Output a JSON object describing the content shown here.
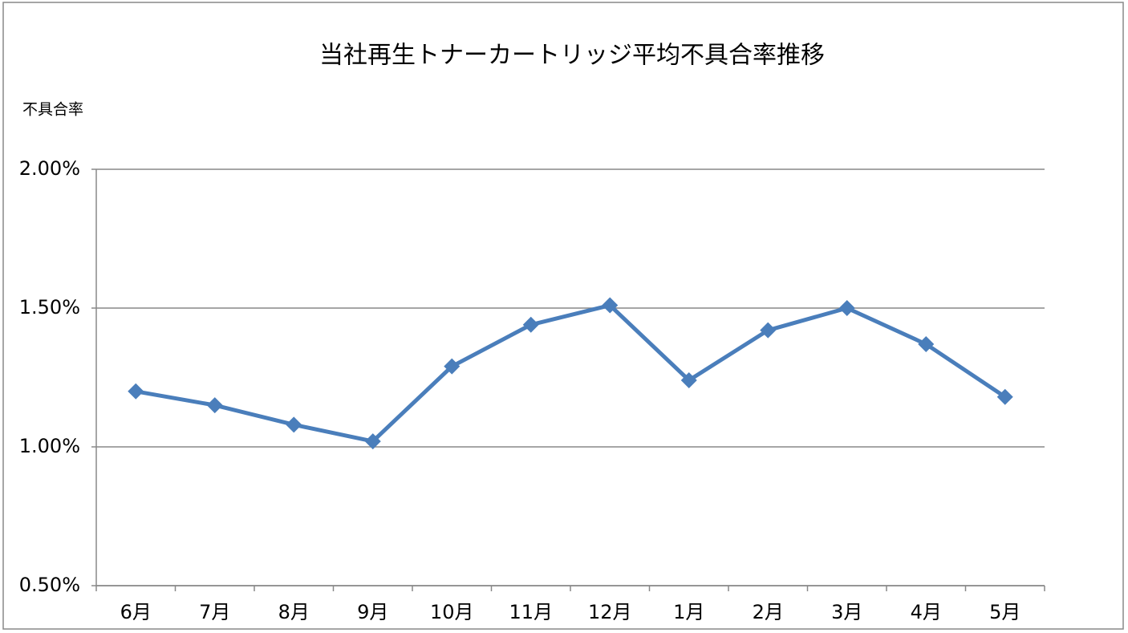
{
  "chart_data": {
    "type": "line",
    "title": "当社再生トナーカートリッジ平均不具合率推移",
    "y_label": "不具合率",
    "categories": [
      "6月",
      "7月",
      "8月",
      "9月",
      "10月",
      "11月",
      "12月",
      "1月",
      "2月",
      "3月",
      "4月",
      "5月"
    ],
    "values": [
      1.2,
      1.15,
      1.08,
      1.02,
      1.29,
      1.44,
      1.51,
      1.24,
      1.42,
      1.5,
      1.37,
      1.18
    ],
    "color": "#4a7ebb",
    "ylim": [
      0.5,
      2.0
    ],
    "yticks": [
      {
        "value": 0.5,
        "label": "0.50%"
      },
      {
        "value": 1.0,
        "label": "1.00%"
      },
      {
        "value": 1.5,
        "label": "1.50%"
      },
      {
        "value": 2.0,
        "label": "2.00%"
      }
    ],
    "grid": true
  }
}
